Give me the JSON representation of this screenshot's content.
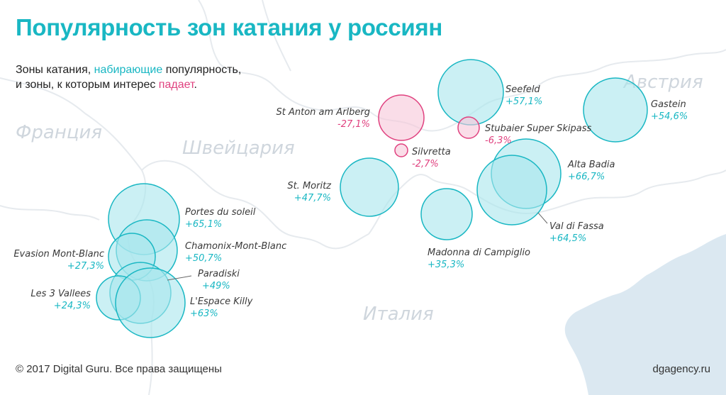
{
  "title": "Популярность зон катания у россиян",
  "subtitle": {
    "line1_pre": "Зоны катания, ",
    "line1_up": "набирающие",
    "line1_post": " популярность,",
    "line2_pre": "и зоны, к которым интерес ",
    "line2_down": "падает",
    "line2_post": "."
  },
  "countries": [
    {
      "key": "france",
      "label": "Франция"
    },
    {
      "key": "switzerland",
      "label": "Швейцария"
    },
    {
      "key": "austria",
      "label": "Австрия"
    },
    {
      "key": "italy",
      "label": "Италия"
    }
  ],
  "colors": {
    "up_fill": "#a9e6ec",
    "up_stroke": "#19b7c3",
    "up_text": "#19b7c3",
    "down_fill": "#f6c7d9",
    "down_stroke": "#e0417f",
    "down_text": "#e0417f",
    "land_border": "#e6eaee",
    "sea": "#dbe8f1"
  },
  "zones": [
    {
      "key": "seefeld",
      "name": "Seefeld",
      "value": "+57,1%",
      "trend": "up"
    },
    {
      "key": "gastein",
      "name": "Gastein",
      "value": "+54,6%",
      "trend": "up"
    },
    {
      "key": "st-anton",
      "name": "St Anton am Arlberg",
      "value": "-27,1%",
      "trend": "down"
    },
    {
      "key": "stubaier",
      "name": "Stubaier Super Skipass",
      "value": "-6,3%",
      "trend": "down"
    },
    {
      "key": "silvretta",
      "name": "Silvretta",
      "value": "-2,7%",
      "trend": "down"
    },
    {
      "key": "alta-badia",
      "name": "Alta Badia",
      "value": "+66,7%",
      "trend": "up"
    },
    {
      "key": "st-moritz",
      "name": "St. Moritz",
      "value": "+47,7%",
      "trend": "up"
    },
    {
      "key": "val-di-fassa",
      "name": "Val di Fassa",
      "value": "+64,5%",
      "trend": "up"
    },
    {
      "key": "madonna",
      "name": "Madonna di Campiglio",
      "value": "+35,3%",
      "trend": "up"
    },
    {
      "key": "portes",
      "name": "Portes du soleil",
      "value": "+65,1%",
      "trend": "up"
    },
    {
      "key": "chamonix",
      "name": "Chamonix-Mont-Blanc",
      "value": "+50,7%",
      "trend": "up"
    },
    {
      "key": "evasion",
      "name": "Evasion Mont-Blanc",
      "value": "+27,3%",
      "trend": "up"
    },
    {
      "key": "paradiski",
      "name": "Paradiski",
      "value": "+49%",
      "trend": "up"
    },
    {
      "key": "les3vallees",
      "name": "Les 3 Vallees",
      "value": "+24,3%",
      "trend": "up"
    },
    {
      "key": "espace-killy",
      "name": "L'Espace Killy",
      "value": "+63%",
      "trend": "up"
    }
  ],
  "footer": {
    "copyright": "© 2017 Digital Guru. Все права защищены",
    "site": "dgagency.ru"
  }
}
